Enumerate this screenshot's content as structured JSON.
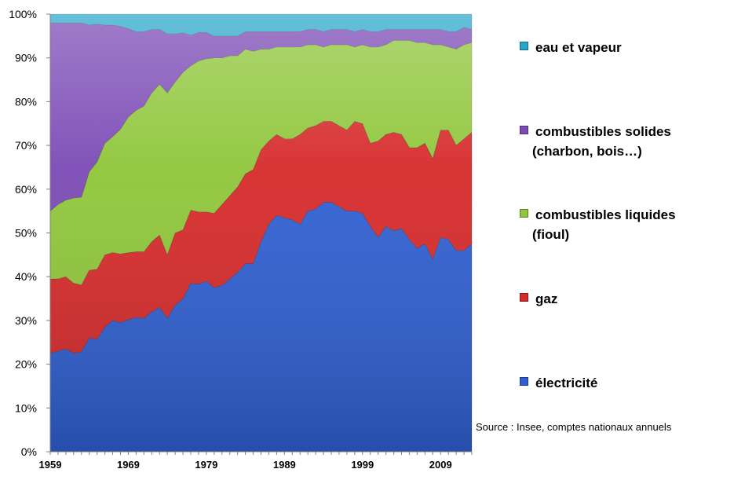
{
  "chart_data": {
    "type": "area",
    "stacked": true,
    "stack_mode": "percent",
    "x": [
      1959,
      1960,
      1961,
      1962,
      1963,
      1964,
      1965,
      1966,
      1967,
      1968,
      1969,
      1970,
      1971,
      1972,
      1973,
      1974,
      1975,
      1976,
      1977,
      1978,
      1979,
      1980,
      1981,
      1982,
      1983,
      1984,
      1985,
      1986,
      1987,
      1988,
      1989,
      1990,
      1991,
      1992,
      1993,
      1994,
      1995,
      1996,
      1997,
      1998,
      1999,
      2000,
      2001,
      2002,
      2003,
      2004,
      2005,
      2006,
      2007,
      2008,
      2009,
      2010,
      2011,
      2012,
      2013
    ],
    "x_ticks": [
      "1959",
      "1969",
      "1979",
      "1989",
      "1999",
      "2009"
    ],
    "y_ticks": [
      "0%",
      "10%",
      "20%",
      "30%",
      "40%",
      "50%",
      "60%",
      "70%",
      "80%",
      "90%",
      "100%"
    ],
    "ylim": [
      0,
      100
    ],
    "grid": false,
    "legend_position": "right",
    "series": [
      {
        "name": "électricité",
        "color": "#2f5fd0",
        "values": [
          22.5,
          23,
          23.5,
          22.5,
          22.8,
          26,
          25.7,
          28.5,
          30,
          29.5,
          30.2,
          30.7,
          30.5,
          32,
          33,
          30.5,
          33.5,
          35,
          38.5,
          38.3,
          39,
          37.5,
          38,
          39.5,
          41,
          43,
          43,
          48,
          52,
          54,
          53.5,
          53,
          52,
          55,
          55.5,
          57,
          57,
          56,
          55,
          55,
          54.5,
          51.5,
          49,
          51.5,
          50.5,
          51,
          48.5,
          46.5,
          47.5,
          44,
          49,
          48.5,
          46,
          46,
          47.5
        ]
      },
      {
        "name": "gaz",
        "color": "#d62a2a",
        "values": [
          17,
          16.5,
          16.5,
          16,
          15.2,
          15.5,
          16,
          16.5,
          15.5,
          15.7,
          15.3,
          15,
          15.2,
          16,
          16.5,
          14.5,
          16.5,
          15.7,
          16.7,
          16.5,
          15.8,
          17,
          18.5,
          19,
          19.5,
          20.5,
          21.5,
          21,
          19,
          18.5,
          18,
          18.5,
          20.5,
          19,
          19,
          18.5,
          18.5,
          18.5,
          18.5,
          20.5,
          20.5,
          19,
          22,
          21,
          22.5,
          21.5,
          21,
          23,
          23,
          23,
          24.5,
          25,
          24,
          25.5,
          25.5
        ]
      },
      {
        "name": "combustibles liquides\n(fioul)",
        "color": "#8fc63a",
        "values": [
          15.5,
          17,
          17.5,
          19.5,
          20,
          22.5,
          24.5,
          25.5,
          26.5,
          28.5,
          31,
          32.3,
          33.3,
          34,
          34.5,
          37,
          34.5,
          36,
          33,
          34.5,
          35,
          35.5,
          33.5,
          32,
          30,
          28.5,
          27,
          23,
          21,
          20,
          21,
          21,
          20,
          19,
          18.5,
          17,
          17.5,
          18.5,
          19.5,
          17,
          18,
          22,
          21.5,
          20.5,
          21,
          21.5,
          24.5,
          24,
          23,
          26,
          19.5,
          19,
          22,
          21.5,
          20.5
        ]
      },
      {
        "name": "combustibles solides\n(charbon, bois…)",
        "color": "#7b4ab5",
        "values": [
          43,
          41.5,
          40.5,
          40,
          39.7,
          33.5,
          31.5,
          27,
          25.5,
          23.5,
          20.2,
          18,
          17,
          14.5,
          12.5,
          13.5,
          11,
          9,
          7,
          6.5,
          6,
          5,
          5,
          4.5,
          4.5,
          4,
          4.5,
          4,
          4,
          3.5,
          3.5,
          3.5,
          3.5,
          3.5,
          3.5,
          3.5,
          3.5,
          3.5,
          3.5,
          3.5,
          3.5,
          3.5,
          3.5,
          3.5,
          2.5,
          2.5,
          2.5,
          3,
          3,
          3.5,
          3.5,
          3.5,
          4,
          4,
          3
        ]
      },
      {
        "name": "eau et vapeur",
        "color": "#29a7c9",
        "values": [
          2,
          2,
          2,
          2,
          2,
          2.5,
          2.3,
          2.5,
          2.5,
          2.8,
          3.3,
          4,
          4,
          3.5,
          3.5,
          4.5,
          4.5,
          4.3,
          4.8,
          4.2,
          4.2,
          5,
          5,
          5,
          5,
          4,
          4,
          4,
          4,
          4,
          4,
          4,
          4,
          3.5,
          3.5,
          4,
          3.5,
          3.5,
          3.5,
          4,
          3.5,
          4,
          4,
          3.5,
          3.5,
          3.5,
          3.5,
          3.5,
          3.5,
          3.5,
          3.5,
          4,
          4,
          3,
          3.5
        ]
      }
    ],
    "source": "Source : Insee, comptes nationaux annuels"
  },
  "legend": [
    {
      "line1": "eau et vapeur",
      "line2": "",
      "color": "#29a7c9"
    },
    {
      "line1": "combustibles solides",
      "line2": "(charbon, bois…)",
      "color": "#7b4ab5"
    },
    {
      "line1": "combustibles liquides",
      "line2": "(fioul)",
      "color": "#8fc63a"
    },
    {
      "line1": "gaz",
      "line2": "",
      "color": "#d62a2a"
    },
    {
      "line1": "électricité",
      "line2": "",
      "color": "#2f5fd0"
    }
  ]
}
